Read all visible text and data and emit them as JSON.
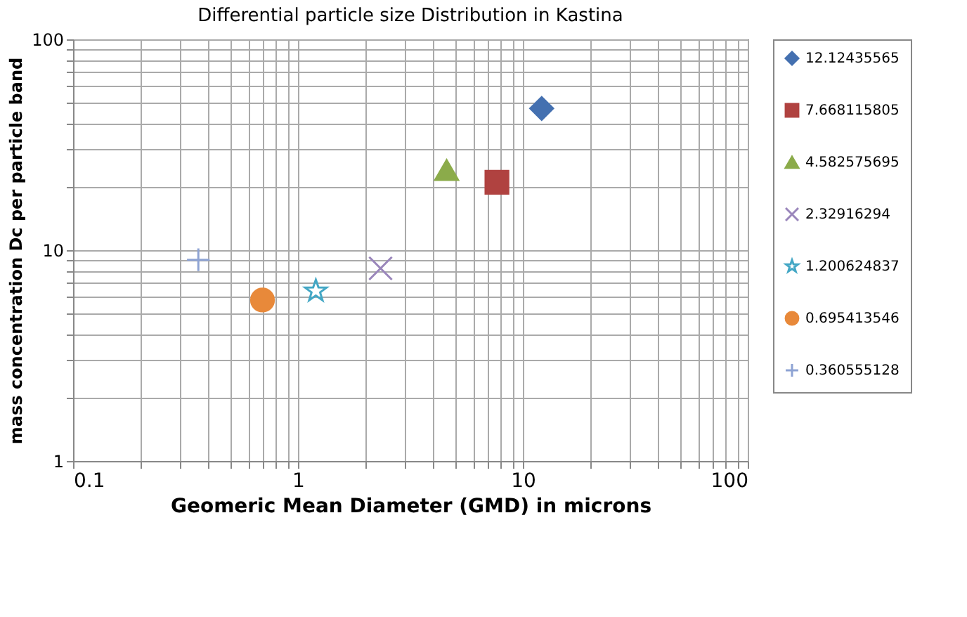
{
  "chart_data": {
    "type": "scatter",
    "title": "Differential particle size Distribution in  Kastina",
    "xlabel": "Geomeric Mean Diameter (GMD) in microns",
    "ylabel": "mass concentration Dc per particle band",
    "log": "xy",
    "grid": true,
    "legend": "right",
    "xlim": [
      0.1,
      100
    ],
    "ylim": [
      1,
      100
    ],
    "xticks": [
      0.1,
      {
        "value": 0.2,
        "label": null
      },
      {
        "value": 0.3,
        "label": null
      },
      {
        "value": 0.4,
        "label": null
      },
      {
        "value": 0.5,
        "label": null
      },
      {
        "value": 0.6,
        "label": null
      },
      {
        "value": 0.7,
        "label": null
      },
      {
        "value": 0.8,
        "label": null
      },
      {
        "value": 0.9,
        "label": null
      },
      1,
      {
        "value": 2,
        "label": null
      },
      {
        "value": 3,
        "label": null
      },
      {
        "value": 4,
        "label": null
      },
      {
        "value": 5,
        "label": null
      },
      {
        "value": 6,
        "label": null
      },
      {
        "value": 7,
        "label": null
      },
      {
        "value": 8,
        "label": null
      },
      {
        "value": 9,
        "label": null
      },
      10,
      {
        "value": 20,
        "label": null
      },
      {
        "value": 30,
        "label": null
      },
      {
        "value": 40,
        "label": null
      },
      {
        "value": 50,
        "label": null
      },
      {
        "value": 60,
        "label": null
      },
      {
        "value": 70,
        "label": null
      },
      {
        "value": 80,
        "label": null
      },
      {
        "value": 90,
        "label": null
      },
      100
    ],
    "yticks": [
      1,
      {
        "value": 2,
        "label": null
      },
      {
        "value": 3,
        "label": null
      },
      {
        "value": 4,
        "label": null
      },
      {
        "value": 5,
        "label": null
      },
      {
        "value": 6,
        "label": null
      },
      {
        "value": 7,
        "label": null
      },
      {
        "value": 8,
        "label": null
      },
      {
        "value": 9,
        "label": null
      },
      10,
      {
        "value": 20,
        "label": null
      },
      {
        "value": 30,
        "label": null
      },
      {
        "value": 40,
        "label": null
      },
      {
        "value": 50,
        "label": null
      },
      {
        "value": 60,
        "label": null
      },
      {
        "value": 70,
        "label": null
      },
      {
        "value": 80,
        "label": null
      },
      {
        "value": 90,
        "label": null
      },
      100
    ],
    "series": [
      {
        "name": "12.12435565",
        "color": "#4470b0",
        "marker": "diamond",
        "x": [
          12.12435565
        ],
        "values": [
          47
        ]
      },
      {
        "name": "7.668115805",
        "color": "#b04240",
        "marker": "square",
        "x": [
          7.668115805
        ],
        "values": [
          21
        ]
      },
      {
        "name": "4.582575695",
        "color": "#8bab4a",
        "marker": "triangle",
        "x": [
          4.582575695
        ],
        "values": [
          24
        ]
      },
      {
        "name": "2.32916294",
        "color": "#9a86bb",
        "marker": "x",
        "x": [
          2.32916294
        ],
        "values": [
          8.2
        ]
      },
      {
        "name": "1.200624837",
        "color": "#43a7c5",
        "marker": "star",
        "x": [
          1.200624837
        ],
        "values": [
          6.4
        ]
      },
      {
        "name": "0.695413546",
        "color": "#e8893a",
        "marker": "circle",
        "x": [
          0.695413546
        ],
        "values": [
          5.8
        ]
      },
      {
        "name": "0.360555128",
        "color": "#8ea3d3",
        "marker": "cross",
        "x": [
          0.360555128
        ],
        "values": [
          9.0
        ]
      }
    ]
  }
}
